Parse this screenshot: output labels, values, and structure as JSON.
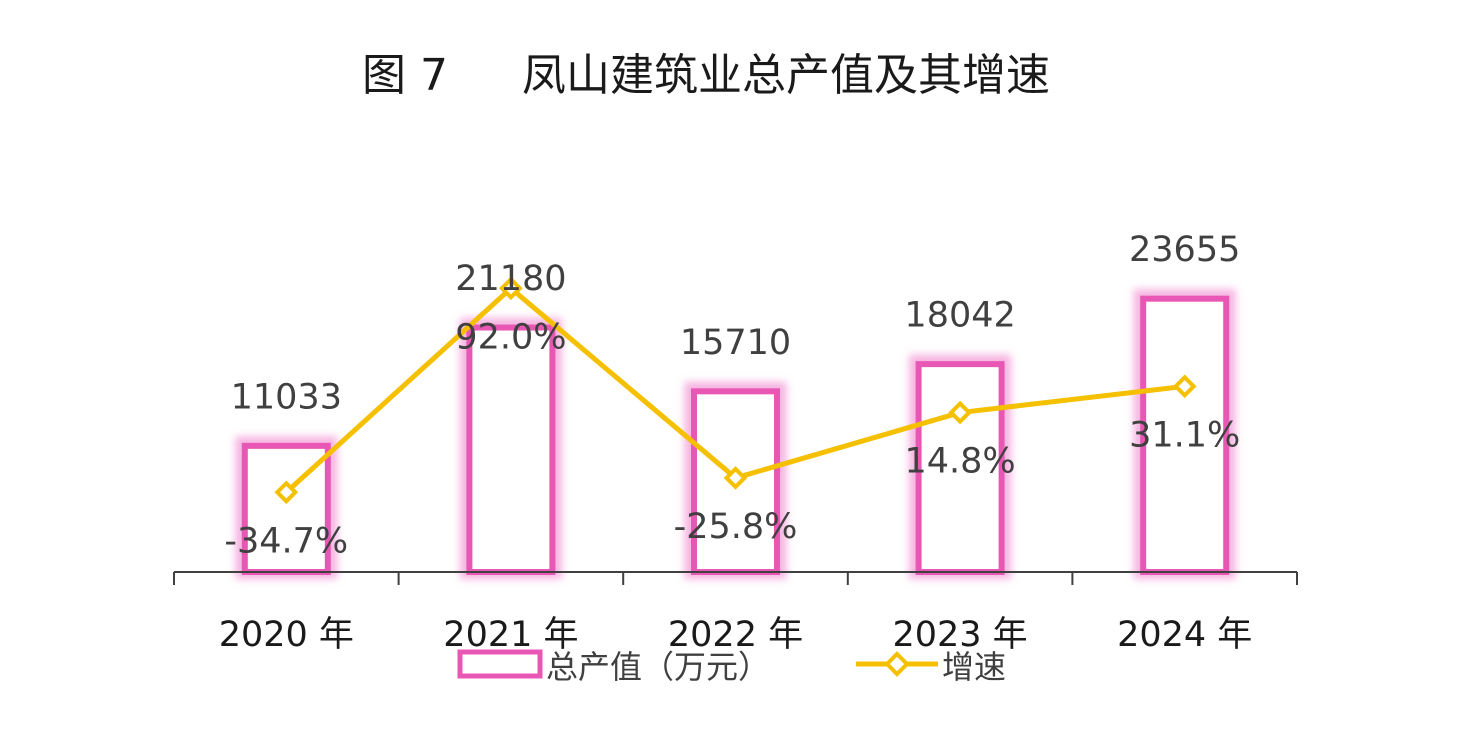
{
  "chart_data": {
    "type": "bar",
    "title_prefix": "图 7",
    "title": "凤山建筑业总产值及其增速",
    "categories": [
      "2020 年",
      "2021 年",
      "2022 年",
      "2023 年",
      "2024 年"
    ],
    "series": [
      {
        "name": "总产值（万元）",
        "type": "bar",
        "values": [
          11033,
          21180,
          15710,
          18042,
          23655
        ],
        "labels": [
          "11033",
          "21180",
          "15710",
          "18042",
          "23655"
        ]
      },
      {
        "name": "增速",
        "type": "line",
        "values": [
          -34.7,
          92.0,
          -25.8,
          14.8,
          31.1
        ],
        "labels": [
          "-34.7%",
          "92.0%",
          "-25.8%",
          "14.8%",
          "31.1%"
        ]
      }
    ],
    "legend_position": "bottom",
    "grid": false,
    "colors": {
      "bar": "#E857B4",
      "bar_glow": "#F6B3E1",
      "line": "#F5C000"
    }
  }
}
